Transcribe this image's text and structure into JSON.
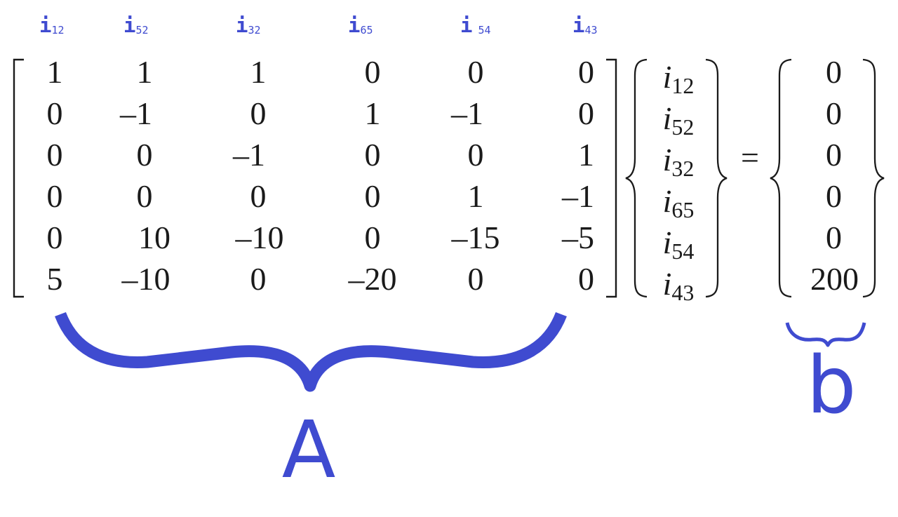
{
  "column_headers": [
    {
      "letter": "i",
      "sub": "12"
    },
    {
      "letter": "i",
      "sub": "52"
    },
    {
      "letter": "i",
      "sub": "32"
    },
    {
      "letter": "i",
      "sub": "65"
    },
    {
      "letter": "i",
      "sub": "54"
    },
    {
      "letter": "i",
      "sub": "43"
    }
  ],
  "matrix_A": [
    [
      "1",
      "1",
      "1",
      "0",
      "0",
      "0"
    ],
    [
      "0",
      "–1",
      "0",
      "1",
      "–1",
      "0"
    ],
    [
      "0",
      "0",
      "–1",
      "0",
      "0",
      "1"
    ],
    [
      "0",
      "0",
      "0",
      "0",
      "1",
      "–1"
    ],
    [
      "0",
      "10",
      "–10",
      "0",
      "–15",
      "–5"
    ],
    [
      "5",
      "–10",
      "0",
      "–20",
      "0",
      "0"
    ]
  ],
  "unknowns": [
    {
      "letter": "i",
      "sub": "12"
    },
    {
      "letter": "i",
      "sub": "52"
    },
    {
      "letter": "i",
      "sub": "32"
    },
    {
      "letter": "i",
      "sub": "65"
    },
    {
      "letter": "i",
      "sub": "54"
    },
    {
      "letter": "i",
      "sub": "43"
    }
  ],
  "equals_sign": "=",
  "vector_b": [
    "0",
    "0",
    "0",
    "0",
    "0",
    "200"
  ],
  "labels": {
    "A": "A",
    "b": "b"
  },
  "colors": {
    "annotation": "#3f4bd0",
    "math": "#1a1a1a"
  }
}
